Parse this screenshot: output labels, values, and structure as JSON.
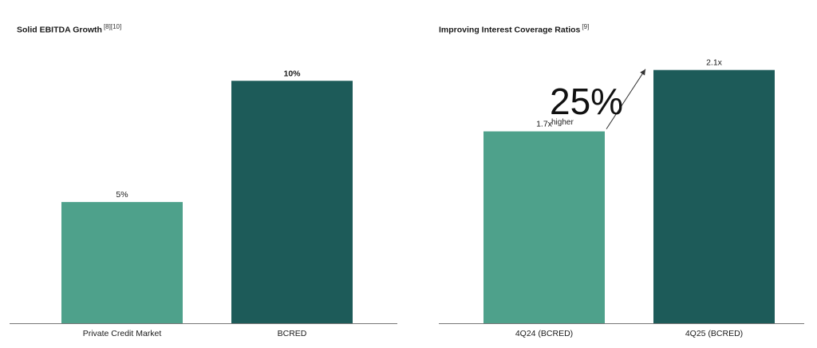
{
  "colors": {
    "light": "#4ea18b",
    "dark": "#1d5b59",
    "axis": "#777777"
  },
  "chart_data": [
    {
      "type": "bar",
      "title": "Solid EBITDA Growth",
      "title_refs": "[8][10]",
      "categories": [
        "Private Credit Market",
        "BCRED"
      ],
      "values": [
        5,
        10
      ],
      "value_labels": [
        "5%",
        "10%"
      ],
      "bold_labels": [
        false,
        true
      ],
      "bar_colors": [
        "light",
        "dark"
      ],
      "ylim": [
        0,
        10.7
      ],
      "xlabel": "",
      "ylabel": "",
      "grid": false,
      "legend": "none"
    },
    {
      "type": "bar",
      "title": "Improving Interest Coverage Ratios",
      "title_refs": "[9]",
      "categories": [
        "4Q24 (BCRED)",
        "4Q25 (BCRED)"
      ],
      "values": [
        1.7,
        2.1
      ],
      "value_labels": [
        "1.7x",
        "2.1x"
      ],
      "bold_labels": [
        false,
        false
      ],
      "bar_colors": [
        "light",
        "dark"
      ],
      "ylim": [
        0.45,
        2.14
      ],
      "xlabel": "",
      "ylabel": "",
      "grid": false,
      "legend": "none",
      "annotation": {
        "value": "25%",
        "text": "higher"
      }
    }
  ]
}
